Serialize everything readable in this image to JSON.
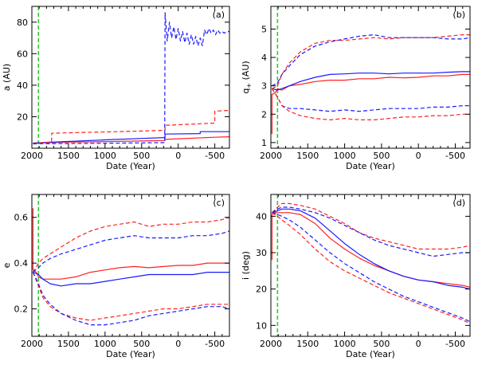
{
  "colors": {
    "red": "#ff2020",
    "blue": "#1a1aff",
    "green": "#2ecc2e",
    "axis": "#000000"
  },
  "chart_data": [
    {
      "type": "line",
      "panel_label": "(a)",
      "xlabel": "Date (Year)",
      "ylabel": "a  (AU)",
      "xlim": [
        2000,
        -700
      ],
      "ylim": [
        0,
        90
      ],
      "xticks": [
        2000,
        1500,
        1000,
        500,
        0,
        -500
      ],
      "xtick_labels": [
        "2000",
        "1500",
        "1000",
        "500",
        "0",
        "-500"
      ],
      "yticks": [
        20,
        40,
        60,
        80
      ],
      "ytick_labels": [
        "20",
        "40",
        "60",
        "80"
      ],
      "vline": 1910,
      "series": [
        {
          "color": "red",
          "dash": false,
          "x": [
            1985,
            1910,
            1500,
            1000,
            500,
            180,
            180,
            -500,
            -700
          ],
          "y": [
            3.2,
            3.4,
            3.9,
            4.2,
            4.6,
            4.9,
            5.6,
            7.0,
            7.3
          ]
        },
        {
          "color": "blue",
          "dash": false,
          "x": [
            1985,
            1910,
            1500,
            1000,
            500,
            180,
            180,
            -300,
            -300,
            -700
          ],
          "y": [
            3.3,
            3.5,
            4.3,
            5.3,
            6.2,
            6.8,
            9.0,
            9.3,
            10.5,
            10.5
          ]
        },
        {
          "color": "red",
          "dash": true,
          "x": [
            1985,
            1910,
            1730,
            1730,
            1500,
            1000,
            500,
            180,
            180,
            -500,
            -500,
            -700
          ],
          "y": [
            3.0,
            3.4,
            4.0,
            9.5,
            9.8,
            10.3,
            10.9,
            11.4,
            14.5,
            16.0,
            23.5,
            24.0
          ]
        },
        {
          "color": "blue",
          "dash": true,
          "x": [
            1985,
            1910,
            1500,
            1000,
            500,
            185,
            180,
            150,
            120,
            90,
            60,
            30,
            0,
            -30,
            -60,
            -90,
            -120,
            -150,
            -180,
            -210,
            -240,
            -270,
            -300,
            -330,
            -360,
            -390,
            -420,
            -450,
            -480,
            -510,
            -540,
            -570,
            -600,
            -630,
            -660,
            -700
          ],
          "y": [
            2.8,
            2.9,
            3.0,
            3.2,
            3.4,
            3.6,
            86,
            68,
            80,
            70,
            77,
            69,
            76,
            68,
            74,
            67,
            73,
            66,
            72,
            66,
            71,
            65,
            70,
            65,
            75,
            72,
            76,
            73,
            75,
            72,
            75,
            73,
            74,
            73,
            74,
            74
          ]
        }
      ]
    },
    {
      "type": "line",
      "panel_label": "(b)",
      "xlabel": "Date (Year)",
      "ylabel": "q  (AU)",
      "ylabel_sub": "+",
      "xlim": [
        2000,
        -700
      ],
      "ylim": [
        0.8,
        5.8
      ],
      "xticks": [
        2000,
        1500,
        1000,
        500,
        0,
        -500
      ],
      "xtick_labels": [
        "2000",
        "1500",
        "1000",
        "500",
        "0",
        "-500"
      ],
      "yticks": [
        1,
        2,
        3,
        4,
        5
      ],
      "ytick_labels": [
        "1",
        "2",
        "3",
        "4",
        "5"
      ],
      "vline": 1910,
      "series": [
        {
          "color": "red",
          "dash": false,
          "x": [
            1985,
            1985,
            1940,
            1910,
            1850,
            1750,
            1600,
            1400,
            1200,
            1000,
            800,
            600,
            400,
            200,
            0,
            -200,
            -400,
            -600,
            -700
          ],
          "y": [
            1.3,
            2.7,
            2.75,
            2.9,
            2.85,
            3.0,
            3.05,
            3.15,
            3.2,
            3.2,
            3.25,
            3.25,
            3.3,
            3.28,
            3.3,
            3.35,
            3.35,
            3.4,
            3.4
          ]
        },
        {
          "color": "blue",
          "dash": false,
          "x": [
            1985,
            1910,
            1850,
            1750,
            1600,
            1400,
            1200,
            1000,
            800,
            600,
            400,
            200,
            0,
            -200,
            -400,
            -600,
            -700
          ],
          "y": [
            2.9,
            2.85,
            2.9,
            3.0,
            3.15,
            3.3,
            3.4,
            3.42,
            3.45,
            3.45,
            3.42,
            3.45,
            3.45,
            3.45,
            3.48,
            3.5,
            3.5
          ]
        },
        {
          "color": "red",
          "dash": true,
          "x": [
            1985,
            1910,
            1850,
            1750,
            1600,
            1400,
            1200,
            1000,
            800,
            600,
            400,
            200,
            0,
            -200,
            -400,
            -600,
            -700
          ],
          "y": [
            2.9,
            3.0,
            3.4,
            3.8,
            4.2,
            4.5,
            4.6,
            4.6,
            4.65,
            4.7,
            4.65,
            4.7,
            4.7,
            4.7,
            4.75,
            4.8,
            4.8
          ]
        },
        {
          "color": "blue",
          "dash": true,
          "x": [
            1985,
            1910,
            1850,
            1750,
            1600,
            1400,
            1200,
            1000,
            800,
            600,
            400,
            200,
            0,
            -200,
            -400,
            -600,
            -700
          ],
          "y": [
            3.0,
            3.1,
            3.4,
            3.7,
            4.1,
            4.4,
            4.55,
            4.65,
            4.75,
            4.8,
            4.7,
            4.7,
            4.7,
            4.7,
            4.65,
            4.65,
            4.7
          ]
        },
        {
          "color": "blue",
          "dash": true,
          "x": [
            1985,
            1910,
            1850,
            1750,
            1600,
            1400,
            1200,
            1000,
            800,
            600,
            400,
            200,
            0,
            -200,
            -400,
            -600,
            -700
          ],
          "y": [
            2.9,
            2.6,
            2.3,
            2.2,
            2.2,
            2.15,
            2.1,
            2.15,
            2.1,
            2.15,
            2.2,
            2.2,
            2.2,
            2.25,
            2.25,
            2.3,
            2.3
          ]
        },
        {
          "color": "red",
          "dash": true,
          "x": [
            1985,
            1910,
            1850,
            1750,
            1600,
            1400,
            1200,
            1000,
            800,
            600,
            400,
            200,
            0,
            -200,
            -400,
            -600,
            -700
          ],
          "y": [
            2.9,
            2.6,
            2.3,
            2.1,
            1.95,
            1.85,
            1.8,
            1.85,
            1.8,
            1.8,
            1.85,
            1.9,
            1.9,
            1.95,
            1.95,
            2.0,
            2.0
          ]
        }
      ]
    },
    {
      "type": "line",
      "panel_label": "(c)",
      "xlabel": "Date (Year)",
      "ylabel": "e",
      "xlim": [
        2000,
        -700
      ],
      "ylim": [
        0.08,
        0.7
      ],
      "xticks": [
        2000,
        1500,
        1000,
        500,
        0,
        -500
      ],
      "xtick_labels": [
        "2000",
        "1500",
        "1000",
        "500",
        "0",
        "-500"
      ],
      "yticks": [
        0.2,
        0.4,
        0.6
      ],
      "ytick_labels": [
        "0.2",
        "0.4",
        "0.6"
      ],
      "vline": 1910,
      "series": [
        {
          "color": "red",
          "dash": false,
          "x": [
            1985,
            1985,
            1940,
            1910,
            1850,
            1750,
            1600,
            1400,
            1200,
            1000,
            800,
            600,
            400,
            200,
            0,
            -200,
            -400,
            -600,
            -700
          ],
          "y": [
            0.64,
            0.37,
            0.36,
            0.34,
            0.33,
            0.33,
            0.33,
            0.34,
            0.36,
            0.37,
            0.38,
            0.385,
            0.38,
            0.385,
            0.39,
            0.39,
            0.4,
            0.4,
            0.4
          ]
        },
        {
          "color": "blue",
          "dash": false,
          "x": [
            1985,
            1910,
            1850,
            1750,
            1600,
            1400,
            1200,
            1000,
            800,
            600,
            400,
            200,
            0,
            -200,
            -400,
            -600,
            -700
          ],
          "y": [
            0.36,
            0.35,
            0.33,
            0.31,
            0.3,
            0.31,
            0.31,
            0.32,
            0.33,
            0.34,
            0.35,
            0.35,
            0.35,
            0.35,
            0.36,
            0.36,
            0.36
          ]
        },
        {
          "color": "red",
          "dash": true,
          "x": [
            1985,
            1910,
            1850,
            1750,
            1600,
            1400,
            1200,
            1000,
            800,
            600,
            400,
            200,
            0,
            -200,
            -400,
            -600,
            -700
          ],
          "y": [
            0.36,
            0.4,
            0.42,
            0.44,
            0.47,
            0.51,
            0.54,
            0.56,
            0.57,
            0.58,
            0.56,
            0.57,
            0.57,
            0.58,
            0.58,
            0.59,
            0.6
          ]
        },
        {
          "color": "blue",
          "dash": true,
          "x": [
            1985,
            1910,
            1850,
            1750,
            1600,
            1400,
            1200,
            1000,
            800,
            600,
            400,
            200,
            0,
            -200,
            -400,
            -600,
            -700
          ],
          "y": [
            0.36,
            0.38,
            0.4,
            0.42,
            0.44,
            0.46,
            0.48,
            0.5,
            0.51,
            0.52,
            0.51,
            0.51,
            0.51,
            0.52,
            0.52,
            0.53,
            0.54
          ]
        },
        {
          "color": "red",
          "dash": true,
          "x": [
            1985,
            1910,
            1850,
            1750,
            1600,
            1400,
            1200,
            1000,
            800,
            600,
            400,
            200,
            0,
            -200,
            -400,
            -600,
            -700
          ],
          "y": [
            0.36,
            0.3,
            0.25,
            0.21,
            0.18,
            0.16,
            0.15,
            0.16,
            0.17,
            0.18,
            0.19,
            0.2,
            0.2,
            0.21,
            0.22,
            0.22,
            0.22
          ]
        },
        {
          "color": "blue",
          "dash": true,
          "x": [
            1985,
            1910,
            1850,
            1750,
            1600,
            1400,
            1200,
            1000,
            800,
            600,
            400,
            200,
            0,
            -200,
            -400,
            -600,
            -700
          ],
          "y": [
            0.36,
            0.31,
            0.26,
            0.22,
            0.18,
            0.15,
            0.13,
            0.13,
            0.14,
            0.15,
            0.17,
            0.18,
            0.19,
            0.2,
            0.21,
            0.21,
            0.2
          ]
        }
      ]
    },
    {
      "type": "line",
      "panel_label": "(d)",
      "xlabel": "Date (Year)",
      "ylabel": "i  (deg)",
      "xlim": [
        2000,
        -700
      ],
      "ylim": [
        7,
        46
      ],
      "xticks": [
        2000,
        1500,
        1000,
        500,
        0,
        -500
      ],
      "xtick_labels": [
        "2000",
        "1500",
        "1000",
        "500",
        "0",
        "-500"
      ],
      "yticks": [
        10,
        20,
        30,
        40
      ],
      "ytick_labels": [
        "10",
        "20",
        "30",
        "40"
      ],
      "vline": 1910,
      "series": [
        {
          "color": "red",
          "dash": false,
          "x": [
            1985,
            1985,
            1950,
            1910,
            1850,
            1750,
            1600,
            1400,
            1200,
            1000,
            800,
            600,
            400,
            200,
            0,
            -200,
            -400,
            -600,
            -700
          ],
          "y": [
            28,
            40.5,
            41,
            41,
            41,
            41,
            40.5,
            38,
            34,
            31,
            28.5,
            26.5,
            25,
            23.5,
            22.5,
            22,
            21.5,
            21,
            20.5
          ]
        },
        {
          "color": "blue",
          "dash": false,
          "x": [
            1985,
            1910,
            1850,
            1750,
            1600,
            1400,
            1200,
            1000,
            800,
            600,
            400,
            200,
            0,
            -200,
            -400,
            -600,
            -700
          ],
          "y": [
            41,
            41.5,
            42,
            42,
            41.5,
            39.5,
            36,
            32.5,
            29.5,
            27,
            25,
            23.5,
            22.5,
            22,
            21,
            20.5,
            20
          ]
        },
        {
          "color": "red",
          "dash": true,
          "x": [
            1985,
            1910,
            1850,
            1750,
            1600,
            1400,
            1200,
            1000,
            800,
            600,
            400,
            200,
            0,
            -200,
            -400,
            -600,
            -700
          ],
          "y": [
            41,
            42.5,
            43.5,
            43.5,
            43,
            42,
            40,
            38,
            35.5,
            34,
            33,
            32,
            31,
            31,
            31,
            31.5,
            32
          ]
        },
        {
          "color": "blue",
          "dash": true,
          "x": [
            1985,
            1910,
            1850,
            1750,
            1600,
            1400,
            1200,
            1000,
            800,
            600,
            400,
            200,
            0,
            -200,
            -400,
            -600,
            -700
          ],
          "y": [
            41,
            42,
            42.5,
            42.5,
            42,
            41,
            39.5,
            37.5,
            35.5,
            33.5,
            32,
            31,
            30,
            29,
            29.5,
            30,
            30
          ]
        },
        {
          "color": "blue",
          "dash": true,
          "x": [
            1985,
            1910,
            1850,
            1750,
            1600,
            1400,
            1200,
            1000,
            800,
            600,
            400,
            200,
            0,
            -200,
            -400,
            -600,
            -700
          ],
          "y": [
            41,
            40.5,
            40,
            39,
            37,
            33.5,
            30,
            27,
            24.5,
            22,
            20,
            18,
            16.5,
            15,
            13.5,
            12,
            11
          ]
        },
        {
          "color": "red",
          "dash": true,
          "x": [
            1985,
            1910,
            1850,
            1750,
            1600,
            1400,
            1200,
            1000,
            800,
            600,
            400,
            200,
            0,
            -200,
            -400,
            -600,
            -700
          ],
          "y": [
            41,
            40,
            39,
            37.5,
            35,
            31,
            27.5,
            25,
            23,
            21,
            19,
            17.5,
            16,
            14.5,
            13,
            11.5,
            10.5
          ]
        }
      ]
    }
  ]
}
